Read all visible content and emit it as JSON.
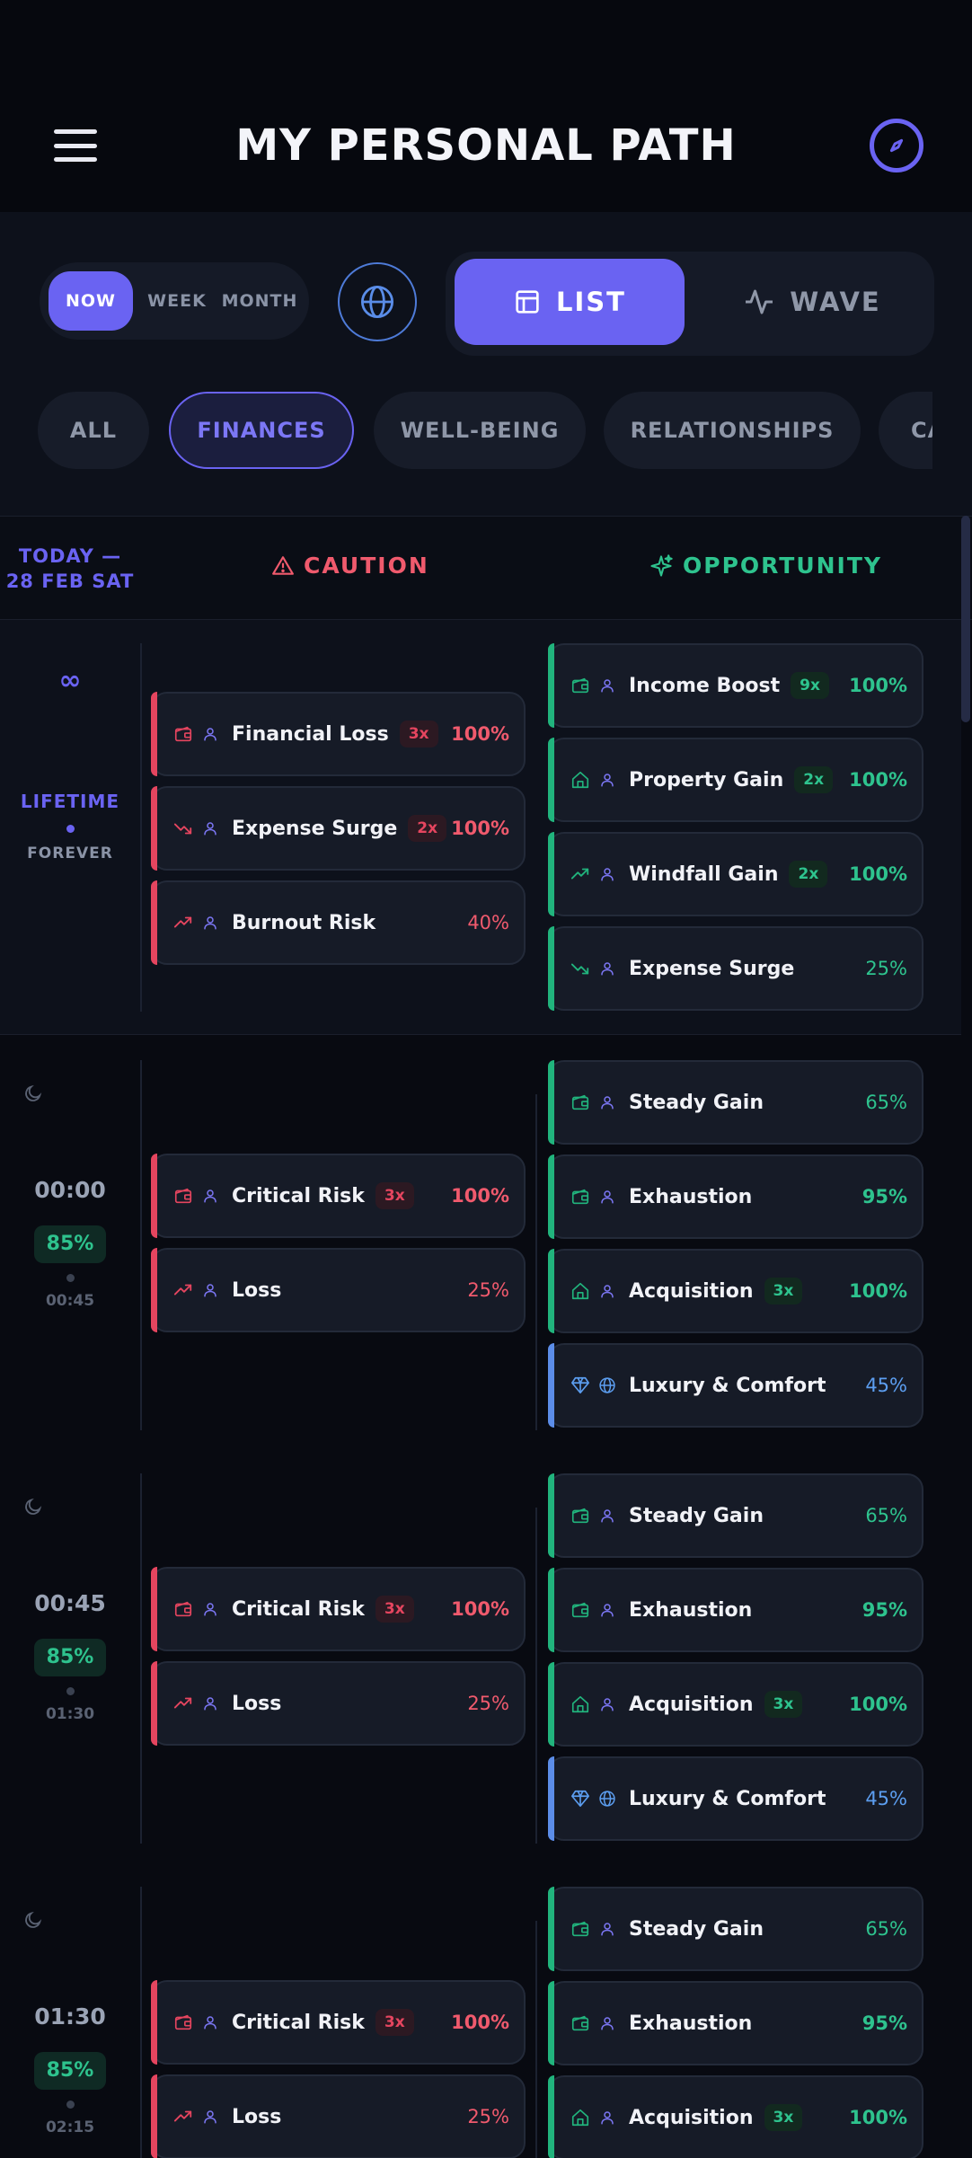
{
  "header": {
    "title": "MY PERSONAL PATH"
  },
  "time_filter": {
    "now": "NOW",
    "week": "WEEK",
    "month": "MONTH",
    "selected": "NOW"
  },
  "view_toggle": {
    "list": "LIST",
    "wave": "WAVE",
    "selected": "LIST"
  },
  "categories": [
    "ALL",
    "FINANCES",
    "WELL-BEING",
    "RELATIONSHIPS",
    "CA"
  ],
  "selected_category": "FINANCES",
  "columns": {
    "today": "TODAY — 28 FEB SAT",
    "caution": "CAUTION",
    "opportunity": "OPPORTUNITY"
  },
  "lifetime": {
    "symbol": "∞",
    "label": "LIFETIME",
    "sub": "FOREVER",
    "caution": [
      {
        "name": "Financial Loss",
        "mult": "3x",
        "pct": "100%",
        "icon": "wallet-icon"
      },
      {
        "name": "Expense Surge",
        "mult": "2x",
        "pct": "100%",
        "icon": "trend-down-icon"
      },
      {
        "name": "Burnout Risk",
        "mult": "",
        "pct": "40%",
        "icon": "trend-up-icon"
      }
    ],
    "opportunity": [
      {
        "name": "Income Boost",
        "mult": "9x",
        "pct": "100%",
        "icon": "wallet-icon"
      },
      {
        "name": "Property Gain",
        "mult": "2x",
        "pct": "100%",
        "icon": "home-icon"
      },
      {
        "name": "Windfall Gain",
        "mult": "2x",
        "pct": "100%",
        "icon": "trend-up-icon"
      },
      {
        "name": "Expense Surge",
        "mult": "",
        "pct": "25%",
        "icon": "trend-down-icon"
      }
    ]
  },
  "slots": [
    {
      "start": "00:00",
      "pct": "85%",
      "end": "00:45",
      "caution": [
        {
          "name": "Critical Risk",
          "mult": "3x",
          "pct": "100%",
          "icon": "wallet-icon"
        },
        {
          "name": "Loss",
          "mult": "",
          "pct": "25%",
          "icon": "trend-up-icon"
        }
      ],
      "opportunity": [
        {
          "name": "Steady Gain",
          "mult": "",
          "pct": "65%",
          "icon": "wallet-icon",
          "tone": "green"
        },
        {
          "name": "Exhaustion",
          "mult": "",
          "pct": "95%",
          "icon": "wallet-icon",
          "tone": "green"
        },
        {
          "name": "Acquisition",
          "mult": "3x",
          "pct": "100%",
          "icon": "home-icon",
          "tone": "green"
        },
        {
          "name": "Luxury & Comfort",
          "mult": "",
          "pct": "45%",
          "icon": "diamond-icon",
          "tone": "blue"
        }
      ]
    },
    {
      "start": "00:45",
      "pct": "85%",
      "end": "01:30",
      "caution": [
        {
          "name": "Critical Risk",
          "mult": "3x",
          "pct": "100%",
          "icon": "wallet-icon"
        },
        {
          "name": "Loss",
          "mult": "",
          "pct": "25%",
          "icon": "trend-up-icon"
        }
      ],
      "opportunity": [
        {
          "name": "Steady Gain",
          "mult": "",
          "pct": "65%",
          "icon": "wallet-icon",
          "tone": "green"
        },
        {
          "name": "Exhaustion",
          "mult": "",
          "pct": "95%",
          "icon": "wallet-icon",
          "tone": "green"
        },
        {
          "name": "Acquisition",
          "mult": "3x",
          "pct": "100%",
          "icon": "home-icon",
          "tone": "green"
        },
        {
          "name": "Luxury & Comfort",
          "mult": "",
          "pct": "45%",
          "icon": "diamond-icon",
          "tone": "blue"
        }
      ]
    },
    {
      "start": "01:30",
      "pct": "85%",
      "end": "02:15",
      "caution": [
        {
          "name": "Critical Risk",
          "mult": "3x",
          "pct": "100%",
          "icon": "wallet-icon"
        },
        {
          "name": "Loss",
          "mult": "",
          "pct": "25%",
          "icon": "trend-up-icon"
        }
      ],
      "opportunity": [
        {
          "name": "Steady Gain",
          "mult": "",
          "pct": "65%",
          "icon": "wallet-icon",
          "tone": "green"
        },
        {
          "name": "Exhaustion",
          "mult": "",
          "pct": "95%",
          "icon": "wallet-icon",
          "tone": "green"
        },
        {
          "name": "Acquisition",
          "mult": "3x",
          "pct": "100%",
          "icon": "home-icon",
          "tone": "green"
        }
      ]
    }
  ],
  "colors": {
    "accent": "#6a63f2",
    "caution": "#e5455f",
    "opportunity": "#21b47d",
    "luxury": "#5c8de8"
  }
}
